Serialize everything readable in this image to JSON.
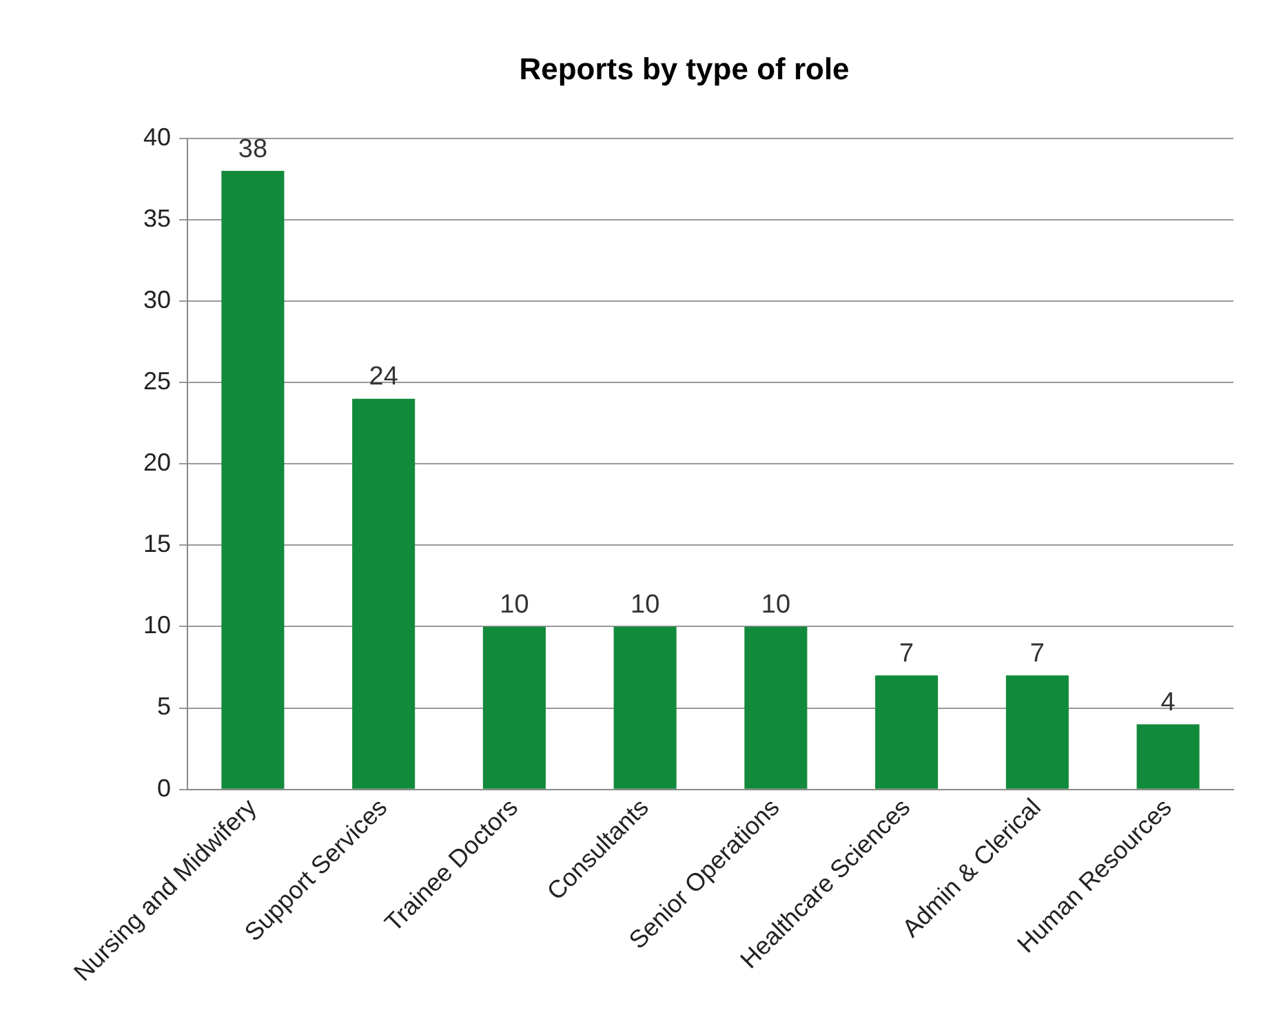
{
  "chart_data": {
    "type": "bar",
    "title": "Reports by type of role",
    "categories": [
      "Nursing and Midwifery",
      "Support Services",
      "Trainee Doctors",
      "Consultants",
      "Senior Operations",
      "Healthcare Sciences",
      "Admin & Clerical",
      "Human Resources"
    ],
    "values": [
      38,
      24,
      10,
      10,
      10,
      7,
      7,
      4
    ],
    "color": "#128a3b",
    "ylim": [
      0,
      40
    ],
    "yticks": [
      0,
      5,
      10,
      15,
      20,
      25,
      30,
      35,
      40
    ],
    "grid": "y",
    "legend": false,
    "data_labels": true
  }
}
